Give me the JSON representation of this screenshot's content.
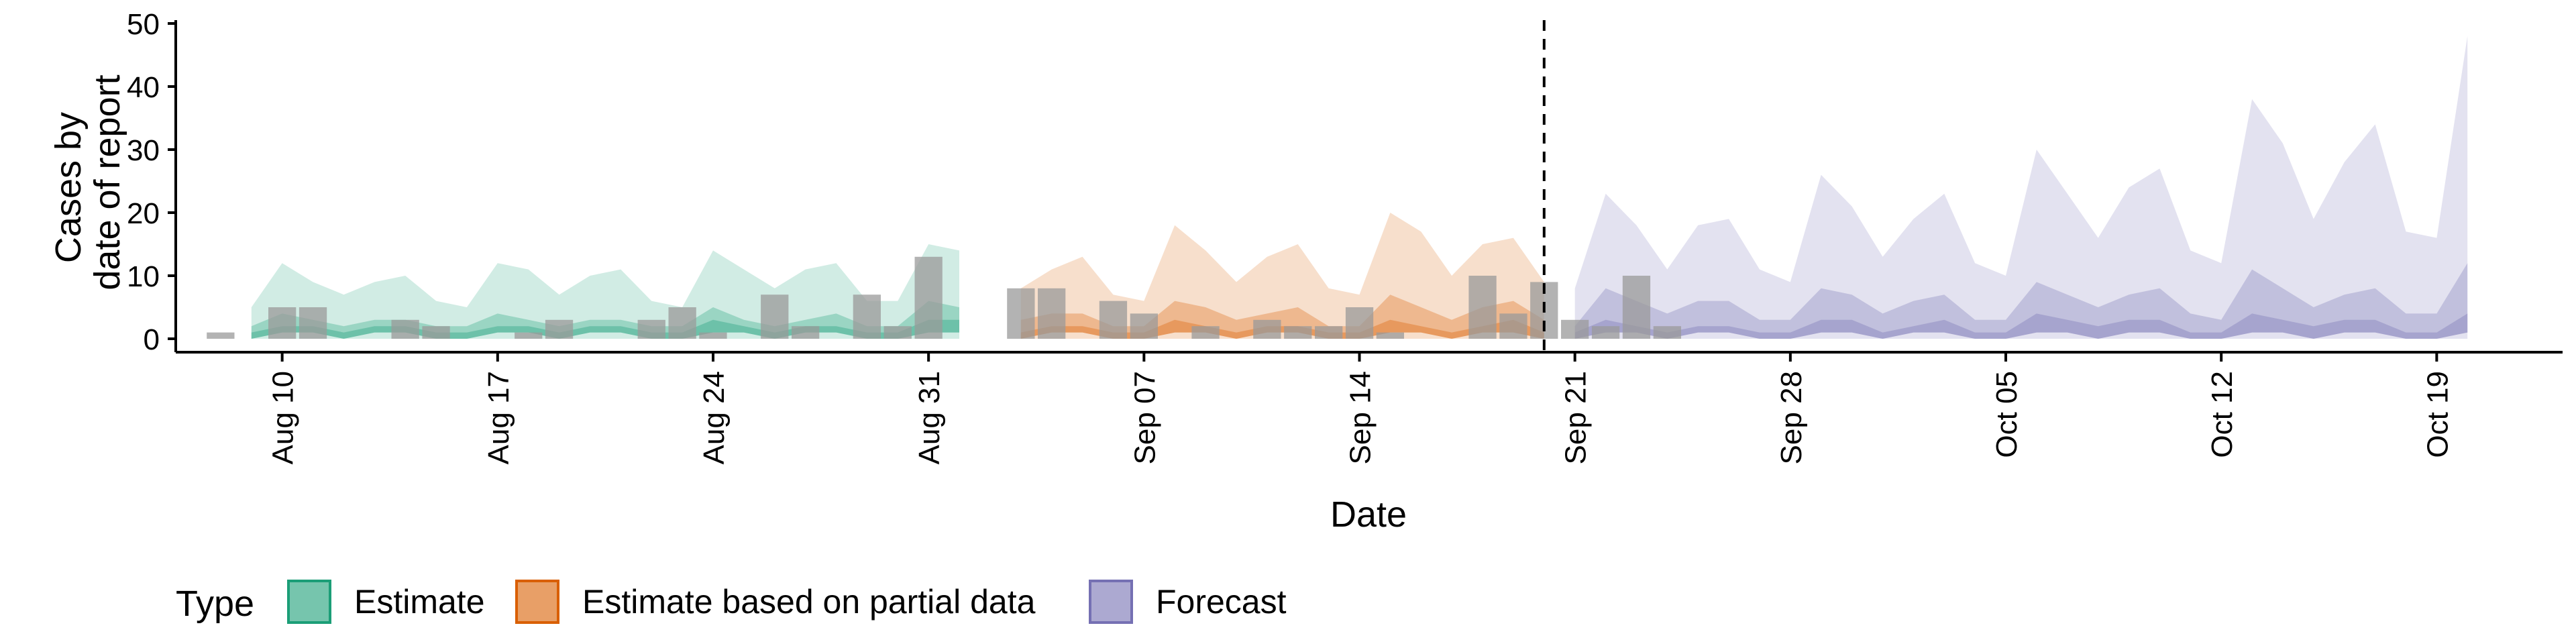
{
  "chart_data": {
    "type": "area",
    "xlabel": "Date",
    "ylabel_lines": [
      "Cases by",
      "date of report"
    ],
    "ylim": [
      0,
      50
    ],
    "y_ticks": [
      0,
      10,
      20,
      30,
      40,
      50
    ],
    "x_range": [
      "2020-08-07",
      "2020-10-22"
    ],
    "x_ticks": [
      {
        "date": "2020-08-10",
        "label": "Aug 10"
      },
      {
        "date": "2020-08-17",
        "label": "Aug 17"
      },
      {
        "date": "2020-08-24",
        "label": "Aug 24"
      },
      {
        "date": "2020-08-31",
        "label": "Aug 31"
      },
      {
        "date": "2020-09-07",
        "label": "Sep 07"
      },
      {
        "date": "2020-09-14",
        "label": "Sep 14"
      },
      {
        "date": "2020-09-21",
        "label": "Sep 21"
      },
      {
        "date": "2020-09-28",
        "label": "Sep 28"
      },
      {
        "date": "2020-10-05",
        "label": "Oct 05"
      },
      {
        "date": "2020-10-12",
        "label": "Oct 12"
      },
      {
        "date": "2020-10-19",
        "label": "Oct 19"
      }
    ],
    "forecast_date": "2020-09-20",
    "grid": false,
    "legend": {
      "title": "Type",
      "position": "bottom"
    },
    "series": [
      {
        "name": "Estimate",
        "color": "#1b9e77",
        "start_date": "2020-08-09",
        "upper90": [
          5,
          12,
          9,
          7,
          9,
          10,
          6,
          5,
          12,
          11,
          7,
          10,
          11,
          6,
          5,
          14,
          11,
          8,
          11,
          12,
          6,
          6,
          15,
          14
        ],
        "lower90": [
          0,
          0,
          0,
          0,
          0,
          0,
          0,
          0,
          0,
          0,
          0,
          0,
          0,
          0,
          0,
          0,
          0,
          0,
          0,
          0,
          0,
          0,
          0,
          0
        ],
        "upper50": [
          2,
          4,
          3,
          2,
          3,
          3,
          2,
          2,
          4,
          3,
          2,
          3,
          3,
          2,
          2,
          5,
          3,
          2,
          3,
          4,
          2,
          2,
          6,
          5
        ],
        "lower50": [
          0,
          1,
          1,
          0,
          1,
          1,
          0,
          0,
          1,
          1,
          0,
          1,
          1,
          0,
          0,
          1,
          1,
          0,
          1,
          1,
          0,
          0,
          1,
          1
        ],
        "upper20": [
          1,
          2,
          2,
          1,
          2,
          2,
          1,
          1,
          2,
          2,
          1,
          2,
          2,
          1,
          1,
          3,
          2,
          1,
          2,
          2,
          1,
          1,
          3,
          3
        ],
        "lower20": [
          0,
          1,
          1,
          0,
          1,
          1,
          0,
          0,
          1,
          1,
          0,
          1,
          1,
          0,
          0,
          1,
          1,
          0,
          1,
          1,
          0,
          0,
          1,
          1
        ]
      },
      {
        "name": "Estimate based on partial data",
        "color": "#d95f02",
        "start_date": "2020-09-03",
        "upper90": [
          8,
          11,
          13,
          7,
          6,
          18,
          14,
          9,
          13,
          15,
          8,
          7,
          20,
          17,
          10,
          15,
          16,
          9
        ],
        "lower90": [
          0,
          0,
          0,
          0,
          0,
          0,
          0,
          0,
          0,
          0,
          0,
          0,
          0,
          0,
          0,
          0,
          0,
          0
        ],
        "upper50": [
          3,
          4,
          4,
          2,
          2,
          6,
          5,
          3,
          4,
          5,
          2,
          2,
          7,
          5,
          3,
          5,
          6,
          3
        ],
        "lower50": [
          0,
          1,
          1,
          0,
          0,
          1,
          1,
          0,
          1,
          1,
          0,
          0,
          1,
          1,
          0,
          1,
          1,
          0
        ],
        "upper20": [
          1,
          2,
          2,
          1,
          1,
          3,
          2,
          1,
          2,
          2,
          1,
          1,
          3,
          2,
          1,
          2,
          3,
          1
        ],
        "lower20": [
          0,
          1,
          1,
          0,
          0,
          1,
          1,
          0,
          1,
          1,
          0,
          0,
          1,
          1,
          0,
          1,
          1,
          0
        ]
      },
      {
        "name": "Forecast",
        "color": "#7570b3",
        "start_date": "2020-09-21",
        "upper90": [
          8,
          23,
          18,
          11,
          18,
          19,
          11,
          9,
          26,
          21,
          13,
          19,
          23,
          12,
          10,
          30,
          23,
          16,
          24,
          27,
          14,
          12,
          38,
          31,
          19,
          28,
          34,
          17,
          16,
          48
        ],
        "lower90": [
          0,
          0,
          0,
          0,
          0,
          0,
          0,
          0,
          0,
          0,
          0,
          0,
          0,
          0,
          0,
          0,
          0,
          0,
          0,
          0,
          0,
          0,
          0,
          0,
          0,
          0,
          0,
          0,
          0,
          0
        ],
        "upper50": [
          2,
          8,
          6,
          4,
          6,
          6,
          3,
          3,
          8,
          7,
          4,
          6,
          7,
          3,
          3,
          9,
          7,
          5,
          7,
          8,
          4,
          3,
          11,
          8,
          5,
          7,
          8,
          4,
          4,
          12
        ],
        "lower50": [
          0,
          1,
          1,
          0,
          1,
          1,
          0,
          0,
          1,
          1,
          0,
          1,
          1,
          0,
          0,
          1,
          1,
          0,
          1,
          1,
          0,
          0,
          1,
          1,
          0,
          1,
          1,
          0,
          0,
          1
        ],
        "upper20": [
          1,
          3,
          2,
          1,
          2,
          2,
          1,
          1,
          3,
          3,
          1,
          2,
          3,
          1,
          1,
          4,
          3,
          2,
          3,
          3,
          1,
          1,
          4,
          3,
          2,
          3,
          3,
          1,
          1,
          4
        ],
        "lower20": [
          0,
          1,
          1,
          0,
          1,
          1,
          0,
          0,
          1,
          1,
          0,
          1,
          1,
          0,
          0,
          1,
          1,
          0,
          1,
          1,
          0,
          0,
          1,
          1,
          0,
          1,
          1,
          0,
          0,
          1
        ]
      }
    ],
    "reported_cases": {
      "color": "#999999",
      "start_date": "2020-08-08",
      "values": [
        1,
        0,
        5,
        5,
        0,
        0,
        3,
        2,
        0,
        0,
        1,
        3,
        0,
        0,
        3,
        5,
        1,
        0,
        7,
        2,
        0,
        7,
        2,
        13,
        0,
        0,
        8,
        8,
        0,
        6,
        4,
        0,
        2,
        0,
        3,
        2,
        2,
        5,
        1,
        0,
        0,
        10,
        4,
        9,
        3,
        2,
        10,
        2
      ]
    }
  }
}
